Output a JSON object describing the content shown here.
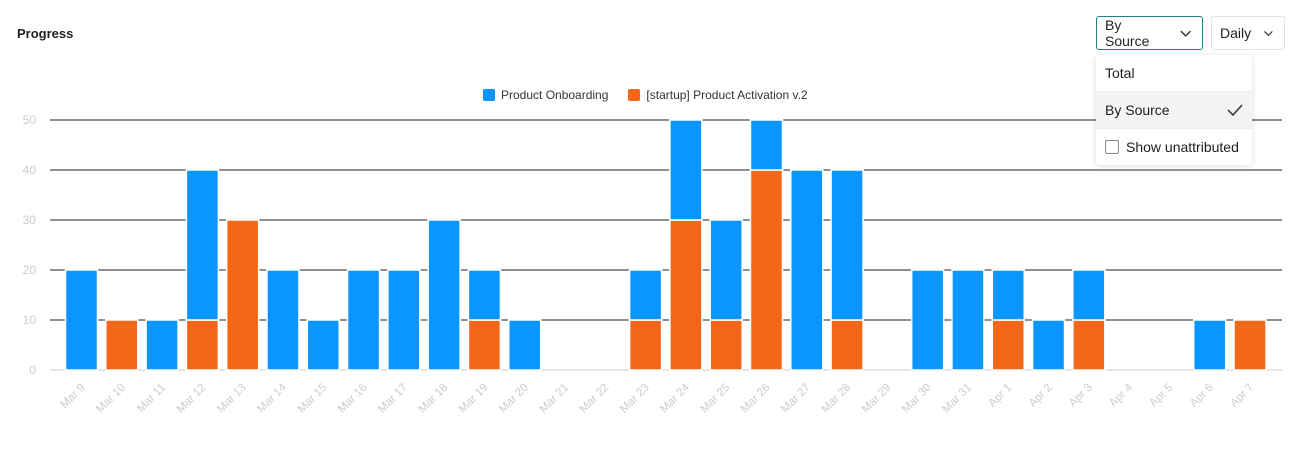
{
  "header": {
    "title": "Progress"
  },
  "controls": {
    "breakdown": {
      "value": "By Source",
      "options": [
        "Total",
        "By Source"
      ],
      "checkbox_label": "Show unattributed",
      "checkbox_checked": false
    },
    "interval": {
      "value": "Daily"
    }
  },
  "chart_data": {
    "type": "bar",
    "stacked": true,
    "categories": [
      "Mar 9",
      "Mar 10",
      "Mar 11",
      "Mar 12",
      "Mar 13",
      "Mar 14",
      "Mar 15",
      "Mar 16",
      "Mar 17",
      "Mar 18",
      "Mar 19",
      "Mar 20",
      "Mar 21",
      "Mar 22",
      "Mar 23",
      "Mar 24",
      "Mar 25",
      "Mar 26",
      "Mar 27",
      "Mar 28",
      "Mar 29",
      "Mar 30",
      "Mar 31",
      "Apr 1",
      "Apr 2",
      "Apr 3",
      "Apr 4",
      "Apr 5",
      "Apr 6",
      "Apr 7"
    ],
    "series": [
      {
        "name": "[startup] Product Activation v.2",
        "color": "#f26818",
        "values": [
          0,
          10,
          0,
          10,
          30,
          0,
          0,
          0,
          0,
          0,
          10,
          0,
          0,
          0,
          10,
          30,
          10,
          40,
          0,
          10,
          0,
          0,
          0,
          10,
          0,
          10,
          0,
          0,
          0,
          10
        ]
      },
      {
        "name": "Product Onboarding",
        "color": "#0b96ff",
        "values": [
          20,
          0,
          10,
          30,
          0,
          20,
          10,
          20,
          20,
          30,
          10,
          10,
          0,
          0,
          10,
          20,
          20,
          10,
          40,
          30,
          0,
          20,
          20,
          10,
          10,
          10,
          0,
          0,
          10,
          0
        ]
      }
    ],
    "legend_order": [
      "Product Onboarding",
      "[startup] Product Activation v.2"
    ],
    "yticks": [
      0,
      10,
      20,
      30,
      40,
      50
    ],
    "ylim": [
      0,
      50
    ],
    "grid": true,
    "legend": "top-center"
  }
}
